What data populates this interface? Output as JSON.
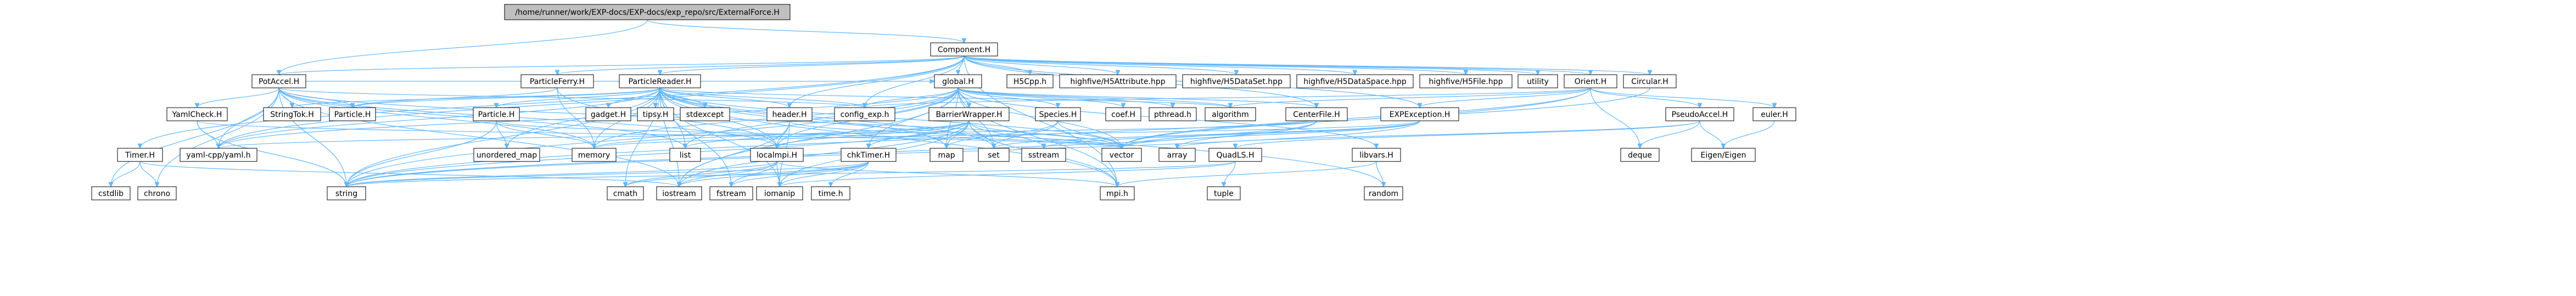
{
  "title": "/home/runner/work/EXP-docs/EXP-docs/exp_repo/src/ExternalForce.H",
  "colors": {
    "root_fill": "#bfbfbf",
    "node_fill": "#ffffff",
    "node_border": "#000000",
    "edge": "#63b8ff"
  },
  "nodes": [
    {
      "id": "root",
      "label": "/home/runner/work/EXP-docs/EXP-docs/exp_repo/src/ExternalForce.H",
      "root": true
    },
    {
      "id": "component",
      "label": "Component.H"
    },
    {
      "id": "potaccel",
      "label": "PotAccel.H"
    },
    {
      "id": "particleferry",
      "label": "ParticleFerry.H"
    },
    {
      "id": "particlereader",
      "label": "ParticleReader.H"
    },
    {
      "id": "global",
      "label": "global.H"
    },
    {
      "id": "h5cpp",
      "label": "H5Cpp.h"
    },
    {
      "id": "h5attr",
      "label": "highfive/H5Attribute.hpp"
    },
    {
      "id": "h5dataset",
      "label": "highfive/H5DataSet.hpp"
    },
    {
      "id": "h5dataspace",
      "label": "highfive/H5DataSpace.hpp"
    },
    {
      "id": "h5file",
      "label": "highfive/H5File.hpp"
    },
    {
      "id": "utility",
      "label": "utility"
    },
    {
      "id": "orient",
      "label": "Orient.H"
    },
    {
      "id": "circular",
      "label": "Circular.H"
    },
    {
      "id": "yamlcheck",
      "label": "YamlCheck.H"
    },
    {
      "id": "stringtok",
      "label": "StringTok.H"
    },
    {
      "id": "particle",
      "label": "Particle.H"
    },
    {
      "id": "particleh2",
      "label": "Particle.H"
    },
    {
      "id": "gadget",
      "label": "gadget.H"
    },
    {
      "id": "tipsy",
      "label": "tipsy.H"
    },
    {
      "id": "stdexcept",
      "label": "stdexcept"
    },
    {
      "id": "header",
      "label": "header.H"
    },
    {
      "id": "configexp",
      "label": "config_exp.h"
    },
    {
      "id": "barrierwrapper",
      "label": "BarrierWrapper.H"
    },
    {
      "id": "species",
      "label": "Species.H"
    },
    {
      "id": "coef",
      "label": "coef.H"
    },
    {
      "id": "pthread",
      "label": "pthread.h"
    },
    {
      "id": "algorithm",
      "label": "algorithm"
    },
    {
      "id": "centerfile",
      "label": "CenterFile.H"
    },
    {
      "id": "expexception",
      "label": "EXPException.H"
    },
    {
      "id": "pseudoaccel",
      "label": "PseudoAccel.H"
    },
    {
      "id": "euler",
      "label": "euler.H"
    },
    {
      "id": "timer",
      "label": "Timer.H"
    },
    {
      "id": "yamlcpp",
      "label": "yaml-cpp/yaml.h"
    },
    {
      "id": "unorderedmap",
      "label": "unordered_map"
    },
    {
      "id": "memory",
      "label": "memory"
    },
    {
      "id": "list",
      "label": "list"
    },
    {
      "id": "localmpi",
      "label": "localmpi.H"
    },
    {
      "id": "chktimer",
      "label": "chkTimer.H"
    },
    {
      "id": "map",
      "label": "map"
    },
    {
      "id": "set",
      "label": "set"
    },
    {
      "id": "sstream",
      "label": "sstream"
    },
    {
      "id": "vector",
      "label": "vector"
    },
    {
      "id": "array",
      "label": "array"
    },
    {
      "id": "quadls",
      "label": "QuadLS.H"
    },
    {
      "id": "deque",
      "label": "deque"
    },
    {
      "id": "eigen",
      "label": "Eigen/Eigen"
    },
    {
      "id": "libvars",
      "label": "libvars.H"
    },
    {
      "id": "cstdlib",
      "label": "cstdlib"
    },
    {
      "id": "chrono",
      "label": "chrono"
    },
    {
      "id": "string",
      "label": "string"
    },
    {
      "id": "cmath",
      "label": "cmath"
    },
    {
      "id": "iostream",
      "label": "iostream"
    },
    {
      "id": "fstream",
      "label": "fstream"
    },
    {
      "id": "iomanip",
      "label": "iomanip"
    },
    {
      "id": "timeh",
      "label": "time.h"
    },
    {
      "id": "mpih",
      "label": "mpi.h"
    },
    {
      "id": "tuple",
      "label": "tuple"
    },
    {
      "id": "random",
      "label": "random"
    }
  ],
  "edges": [
    [
      "root",
      "component"
    ],
    [
      "root",
      "potaccel"
    ],
    [
      "component",
      "utility"
    ],
    [
      "component",
      "h5cpp"
    ],
    [
      "component",
      "h5attr"
    ],
    [
      "component",
      "h5dataset"
    ],
    [
      "component",
      "h5dataspace"
    ],
    [
      "component",
      "h5file"
    ],
    [
      "component",
      "orient"
    ],
    [
      "component",
      "circular"
    ],
    [
      "component",
      "potaccel"
    ],
    [
      "component",
      "particleferry"
    ],
    [
      "component",
      "particlereader"
    ],
    [
      "component",
      "global"
    ],
    [
      "component",
      "header"
    ],
    [
      "component",
      "configexp"
    ],
    [
      "component",
      "timer"
    ],
    [
      "component",
      "yamlcpp"
    ],
    [
      "component",
      "mpih"
    ],
    [
      "component",
      "centerfile"
    ],
    [
      "component",
      "expexception"
    ],
    [
      "potaccel",
      "yamlcheck"
    ],
    [
      "potaccel",
      "stringtok"
    ],
    [
      "potaccel",
      "particle"
    ],
    [
      "potaccel",
      "configexp"
    ],
    [
      "potaccel",
      "yamlcpp"
    ],
    [
      "potaccel",
      "memory"
    ],
    [
      "potaccel",
      "list"
    ],
    [
      "potaccel",
      "cstdlib"
    ],
    [
      "potaccel",
      "chrono"
    ],
    [
      "potaccel",
      "string"
    ],
    [
      "potaccel",
      "global"
    ],
    [
      "potaccel",
      "vector"
    ],
    [
      "potaccel",
      "iostream"
    ],
    [
      "potaccel",
      "localmpi"
    ],
    [
      "yamlcheck",
      "yamlcpp"
    ],
    [
      "yamlcheck",
      "string"
    ],
    [
      "yamlcheck",
      "vector"
    ],
    [
      "timer",
      "cstdlib"
    ],
    [
      "timer",
      "chrono"
    ],
    [
      "timer",
      "iostream"
    ],
    [
      "particleferry",
      "particle"
    ],
    [
      "particleferry",
      "memory"
    ],
    [
      "particleferry",
      "localmpi"
    ],
    [
      "particlereader",
      "stringtok"
    ],
    [
      "particlereader",
      "particle"
    ],
    [
      "particlereader",
      "gadget"
    ],
    [
      "particlereader",
      "tipsy"
    ],
    [
      "particlereader",
      "stdexcept"
    ],
    [
      "particlereader",
      "header"
    ],
    [
      "particlereader",
      "configexp"
    ],
    [
      "particlereader",
      "particleh2"
    ],
    [
      "particlereader",
      "unorderedmap"
    ],
    [
      "particlereader",
      "memory"
    ],
    [
      "particlereader",
      "list"
    ],
    [
      "particlereader",
      "localmpi"
    ],
    [
      "particlereader",
      "vector"
    ],
    [
      "particlereader",
      "string"
    ],
    [
      "particlereader",
      "cmath"
    ],
    [
      "particlereader",
      "iostream"
    ],
    [
      "particlereader",
      "fstream"
    ],
    [
      "particlereader",
      "iomanip"
    ],
    [
      "particlereader",
      "map"
    ],
    [
      "particlereader",
      "set"
    ],
    [
      "particlereader",
      "mpih"
    ],
    [
      "particlereader",
      "yamlcpp"
    ],
    [
      "particlereader",
      "algorithm"
    ],
    [
      "particlereader",
      "random"
    ],
    [
      "particleh2",
      "unorderedmap"
    ],
    [
      "particleh2",
      "memory"
    ],
    [
      "particleh2",
      "vector"
    ],
    [
      "particleh2",
      "string"
    ],
    [
      "global",
      "configexp"
    ],
    [
      "global",
      "coef"
    ],
    [
      "global",
      "pthread"
    ],
    [
      "global",
      "algorithm"
    ],
    [
      "global",
      "barrierwrapper"
    ],
    [
      "global",
      "species"
    ],
    [
      "global",
      "centerfile"
    ],
    [
      "global",
      "memory"
    ],
    [
      "global",
      "list"
    ],
    [
      "global",
      "string"
    ],
    [
      "global",
      "vector"
    ],
    [
      "global",
      "map"
    ],
    [
      "global",
      "set"
    ],
    [
      "global",
      "iostream"
    ],
    [
      "global",
      "mpih"
    ],
    [
      "global",
      "chktimer"
    ],
    [
      "global",
      "libvars"
    ],
    [
      "global",
      "localmpi"
    ],
    [
      "global",
      "yamlcpp"
    ],
    [
      "header",
      "iostream"
    ],
    [
      "header",
      "iomanip"
    ],
    [
      "header",
      "vector"
    ],
    [
      "header",
      "localmpi"
    ],
    [
      "barrierwrapper",
      "memory"
    ],
    [
      "barrierwrapper",
      "list"
    ],
    [
      "barrierwrapper",
      "localmpi"
    ],
    [
      "barrierwrapper",
      "chktimer"
    ],
    [
      "barrierwrapper",
      "map"
    ],
    [
      "barrierwrapper",
      "set"
    ],
    [
      "barrierwrapper",
      "sstream"
    ],
    [
      "barrierwrapper",
      "vector"
    ],
    [
      "barrierwrapper",
      "string"
    ],
    [
      "barrierwrapper",
      "iostream"
    ],
    [
      "barrierwrapper",
      "iomanip"
    ],
    [
      "barrierwrapper",
      "mpih"
    ],
    [
      "species",
      "map"
    ],
    [
      "species",
      "set"
    ],
    [
      "species",
      "vector"
    ],
    [
      "centerfile",
      "vector"
    ],
    [
      "centerfile",
      "array"
    ],
    [
      "centerfile",
      "string"
    ],
    [
      "centerfile",
      "yamlcpp"
    ],
    [
      "expexception",
      "string"
    ],
    [
      "expexception",
      "sstream"
    ],
    [
      "expexception",
      "vector"
    ],
    [
      "expexception",
      "set"
    ],
    [
      "expexception",
      "memory"
    ],
    [
      "orient",
      "expexception"
    ],
    [
      "orient",
      "pseudoaccel"
    ],
    [
      "orient",
      "euler"
    ],
    [
      "orient",
      "deque"
    ],
    [
      "orient",
      "vector"
    ],
    [
      "orient",
      "algorithm"
    ],
    [
      "orient",
      "configexp"
    ],
    [
      "orient",
      "string"
    ],
    [
      "pseudoaccel",
      "deque"
    ],
    [
      "pseudoaccel",
      "eigen"
    ],
    [
      "pseudoaccel",
      "quadls"
    ],
    [
      "pseudoaccel",
      "array"
    ],
    [
      "euler",
      "eigen"
    ],
    [
      "quadls",
      "tuple"
    ],
    [
      "quadls",
      "iomanip"
    ],
    [
      "quadls",
      "string"
    ],
    [
      "circular",
      "vector"
    ],
    [
      "localmpi",
      "iostream"
    ],
    [
      "localmpi",
      "fstream"
    ],
    [
      "localmpi",
      "iomanip"
    ],
    [
      "localmpi",
      "string"
    ],
    [
      "localmpi",
      "mpih"
    ],
    [
      "localmpi",
      "cmath"
    ],
    [
      "chktimer",
      "iostream"
    ],
    [
      "chktimer",
      "iomanip"
    ],
    [
      "chktimer",
      "timeh"
    ],
    [
      "chktimer",
      "string"
    ],
    [
      "chktimer",
      "fstream"
    ],
    [
      "chktimer",
      "cmath"
    ],
    [
      "libvars",
      "mpih"
    ],
    [
      "libvars",
      "random"
    ]
  ]
}
